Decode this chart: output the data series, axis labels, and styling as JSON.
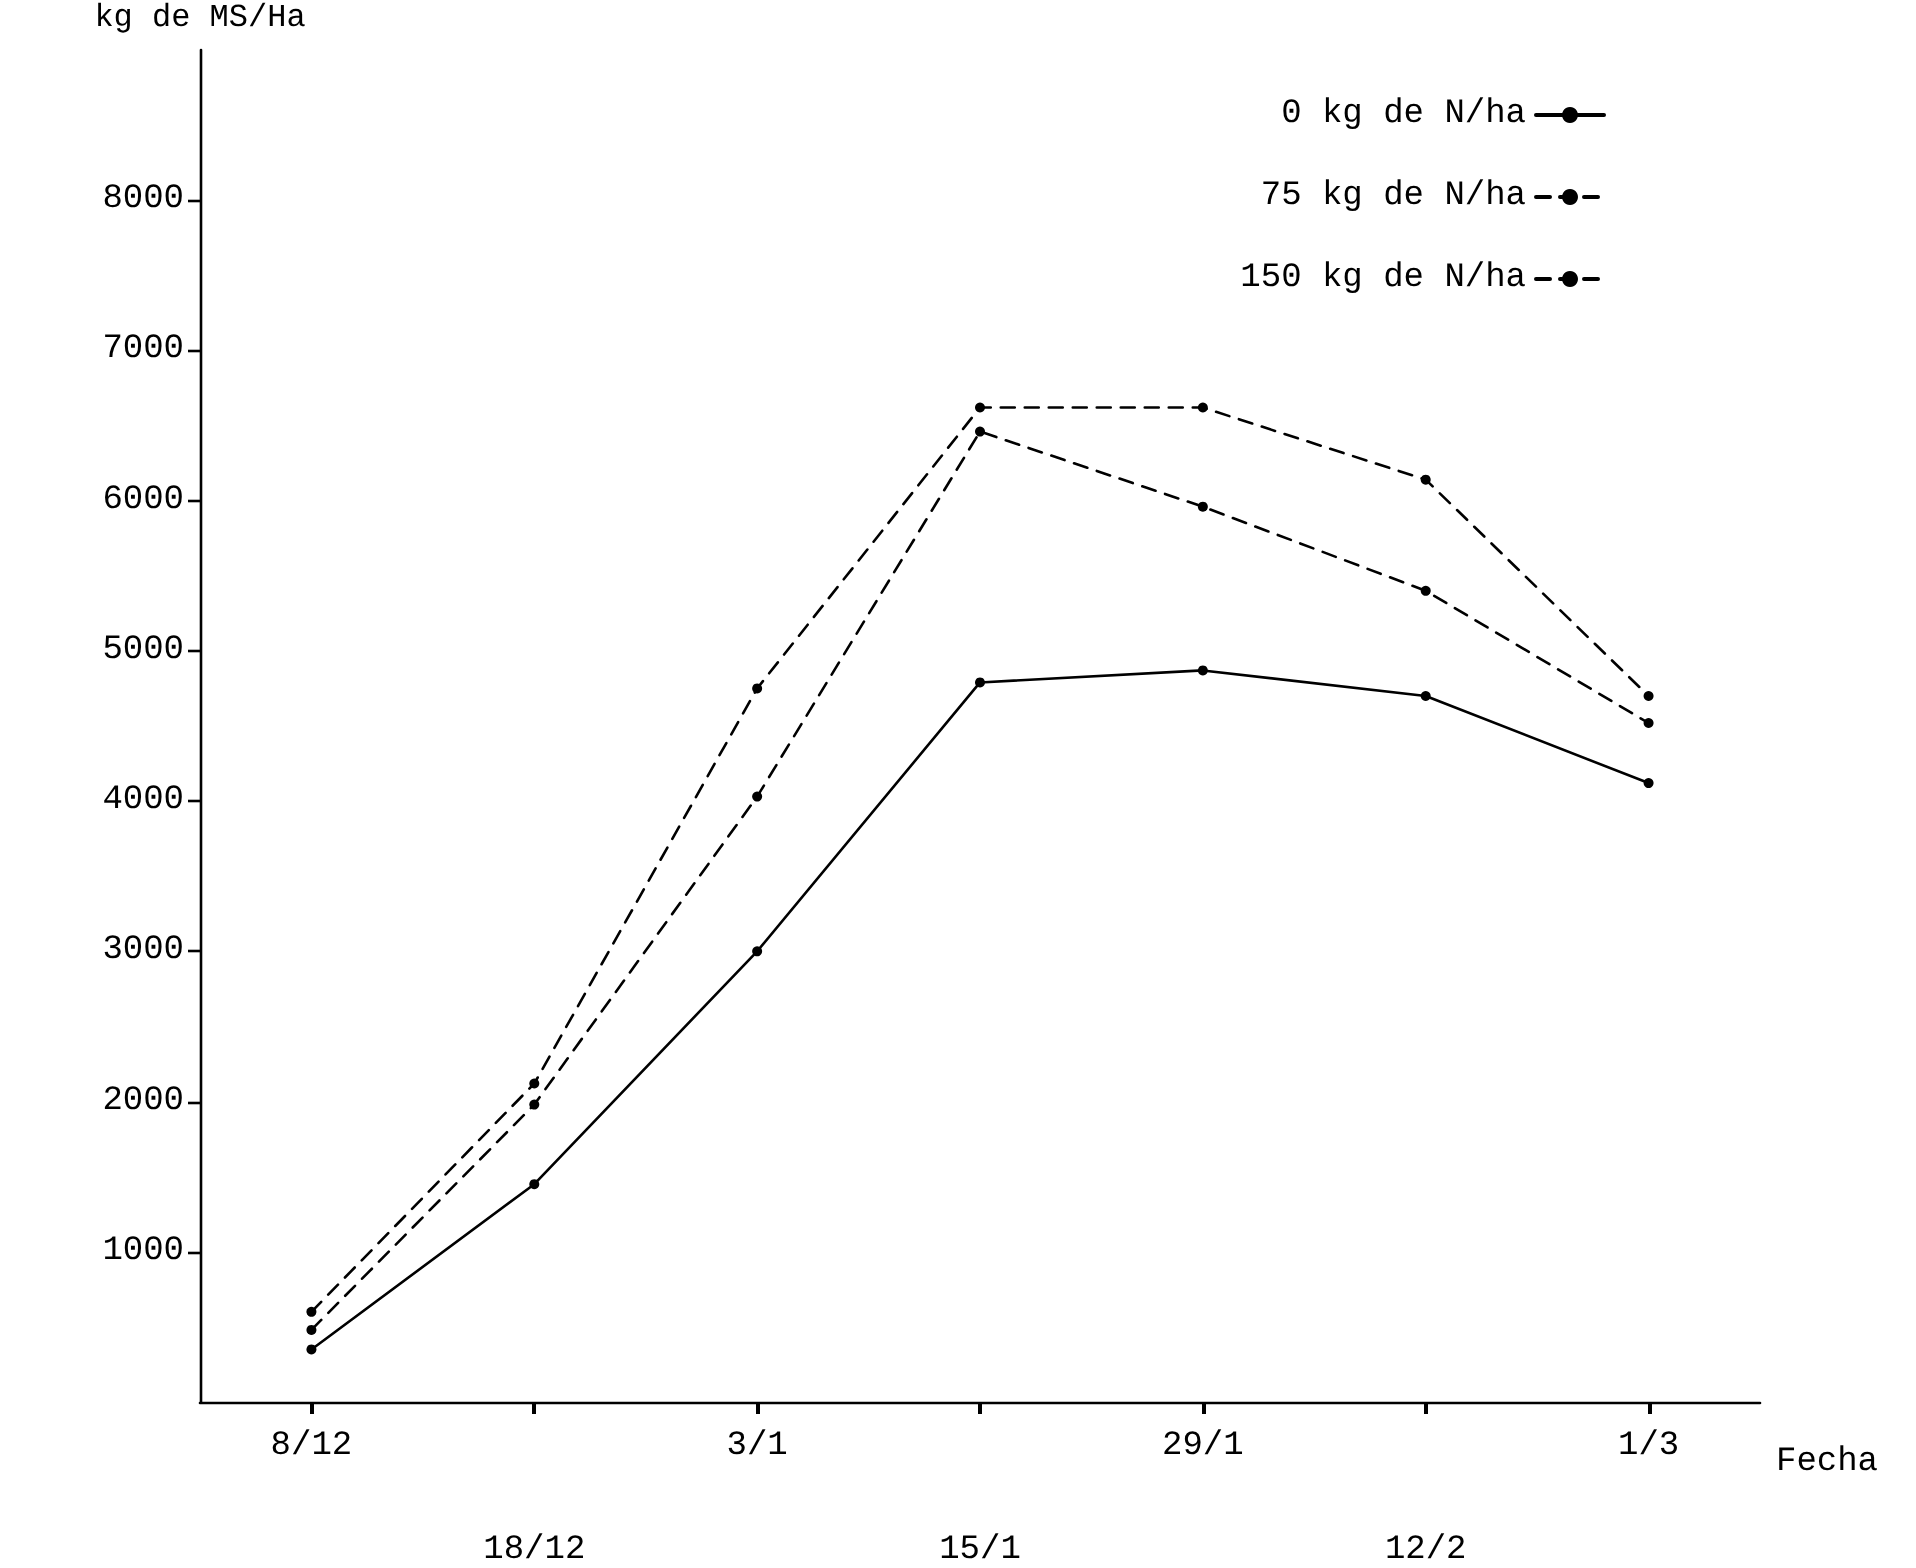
{
  "chart_data": {
    "type": "line",
    "xlabel": "Fecha",
    "ylabel": "kg de MS/Ha",
    "categories": [
      "8/12",
      "18/12",
      "3/1",
      "15/1",
      "29/1",
      "12/2",
      "1/3"
    ],
    "ylim": [
      0,
      9000
    ],
    "yticks": [
      1000,
      2000,
      3000,
      4000,
      5000,
      6000,
      7000,
      8000
    ],
    "series": [
      {
        "name": "0 kg de N/ha",
        "color": "#000000",
        "line_style": "solid",
        "values": [
          350,
          1450,
          3000,
          4790,
          4870,
          4700,
          4120
        ]
      },
      {
        "name": "75 kg de N/ha",
        "color": "#000000",
        "line_style": "dashed",
        "values": [
          480,
          1980,
          4030,
          6460,
          5960,
          5400,
          4520
        ]
      },
      {
        "name": "150 kg de N/ha",
        "color": "#000000",
        "line_style": "dashed",
        "values": [
          600,
          2120,
          4750,
          6620,
          6620,
          6140,
          4700
        ]
      }
    ],
    "marker": "circle",
    "grid": false,
    "legend": "top right"
  }
}
